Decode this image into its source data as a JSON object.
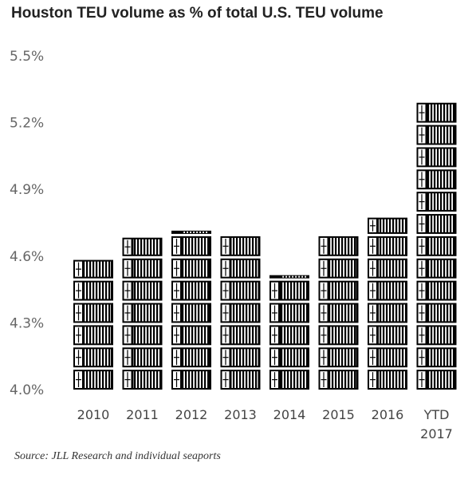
{
  "title": "Houston TEU volume as % of total U.S. TEU volume",
  "source": "Source: JLL Research and individual seaports",
  "chart_data": {
    "type": "bar",
    "title": "Houston TEU volume as % of total U.S. TEU volume",
    "xlabel": "",
    "ylabel": "",
    "categories": [
      [
        "2010"
      ],
      [
        "2011"
      ],
      [
        "2012"
      ],
      [
        "2013"
      ],
      [
        "2014"
      ],
      [
        "2015"
      ],
      [
        "2016"
      ],
      [
        "YTD",
        "2017"
      ]
    ],
    "values": [
      4.59,
      4.69,
      4.71,
      4.7,
      4.52,
      4.7,
      4.78,
      5.3
    ],
    "ylim": [
      4.0,
      5.5
    ],
    "yticks": [
      4.0,
      4.3,
      4.6,
      4.9,
      5.2,
      5.5
    ],
    "ytick_labels": [
      "4.0%",
      "4.3%",
      "4.6%",
      "4.9%",
      "5.2%",
      "5.5%"
    ],
    "bar_style": "stacked shipping-container pictograms",
    "bar_color": "#000000",
    "grid": false,
    "legend": "none"
  }
}
